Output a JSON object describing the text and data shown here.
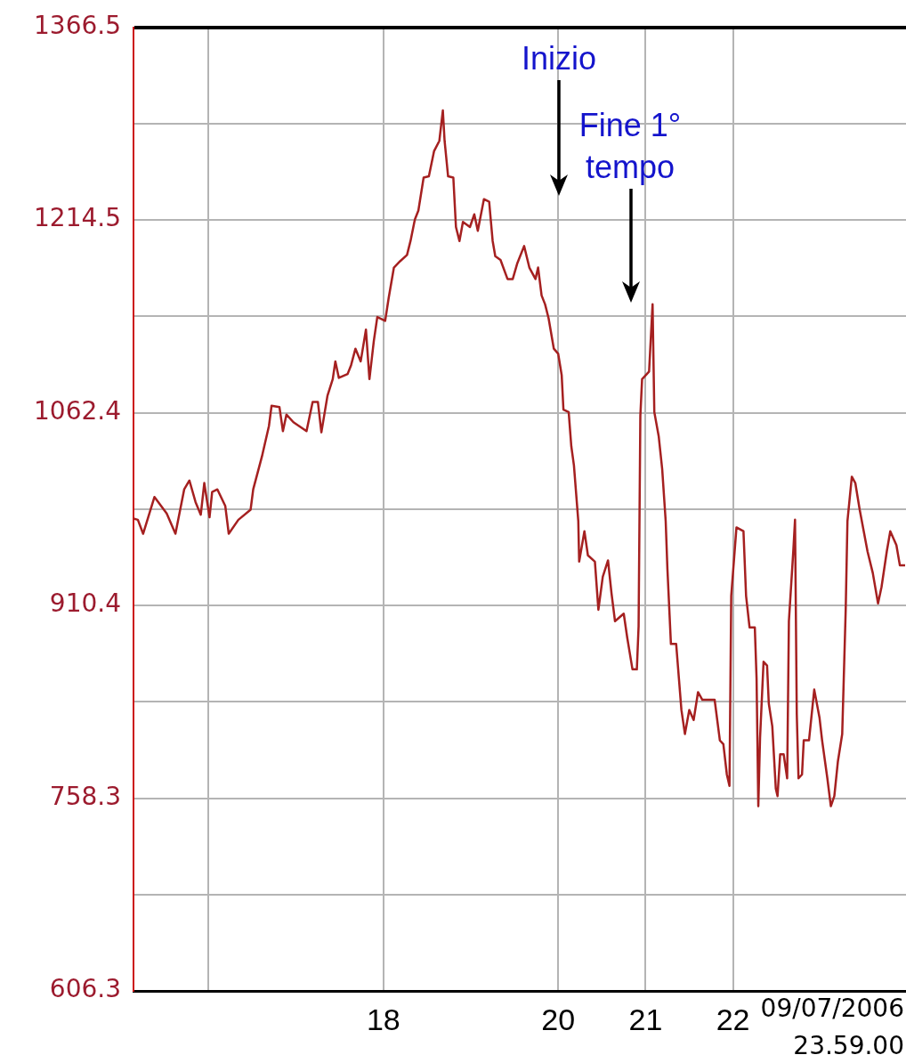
{
  "chart_data": {
    "type": "line",
    "x": [
      15.14,
      15.19,
      15.25,
      15.38,
      15.52,
      15.62,
      15.72,
      15.78,
      15.85,
      15.91,
      15.95,
      16.01,
      16.04,
      16.1,
      16.19,
      16.23,
      16.34,
      16.48,
      16.51,
      16.61,
      16.69,
      16.72,
      16.81,
      16.85,
      16.89,
      16.97,
      17.12,
      17.19,
      17.25,
      17.29,
      17.36,
      17.42,
      17.45,
      17.49,
      17.59,
      17.63,
      17.68,
      17.74,
      17.8,
      17.84,
      17.89,
      17.93,
      18.02,
      18.06,
      18.12,
      18.19,
      18.27,
      18.31,
      18.36,
      18.4,
      18.46,
      18.52,
      18.58,
      18.64,
      18.68,
      18.7,
      18.74,
      18.8,
      18.83,
      18.87,
      18.91,
      18.99,
      19.04,
      19.08,
      19.15,
      19.21,
      19.25,
      19.28,
      19.34,
      19.42,
      19.48,
      19.53,
      19.61,
      19.67,
      19.74,
      19.77,
      19.81,
      19.85,
      19.89,
      19.95,
      20.0,
      20.04,
      20.06,
      20.12,
      20.15,
      20.18,
      20.23,
      20.24,
      20.3,
      20.34,
      20.42,
      20.46,
      20.51,
      20.57,
      20.61,
      20.65,
      20.75,
      20.79,
      20.85,
      20.9,
      20.92,
      20.94,
      20.96,
      21.04,
      21.08,
      21.1,
      21.15,
      21.19,
      21.23,
      21.25,
      21.29,
      21.35,
      21.41,
      21.45,
      21.5,
      21.55,
      21.6,
      21.65,
      21.79,
      21.85,
      21.89,
      21.93,
      21.96,
      21.98,
      22.04,
      22.12,
      22.15,
      22.19,
      22.25,
      22.27,
      22.29,
      22.31,
      22.35,
      22.39,
      22.41,
      22.45,
      22.49,
      22.51,
      22.54,
      22.58,
      22.62,
      22.64,
      22.69,
      22.71,
      22.73,
      22.75,
      22.79,
      22.81,
      22.87,
      22.93,
      22.99,
      23.02,
      23.08,
      23.12,
      23.16,
      23.2,
      23.25,
      23.29,
      23.31,
      23.36,
      23.4,
      23.45,
      23.54,
      23.6,
      23.66,
      23.7,
      23.76,
      23.8,
      23.87,
      23.91,
      23.97
    ],
    "series": [
      {
        "color": "#a52020",
        "values": [
          979,
          978,
          967,
          996,
          983,
          967,
          1002,
          1009,
          992,
          982,
          1007,
          980,
          1000,
          1002,
          989,
          967,
          978,
          986,
          1002,
          1028,
          1052,
          1068,
          1067,
          1048,
          1061,
          1055,
          1048,
          1071,
          1071,
          1047,
          1076,
          1089,
          1103,
          1090,
          1093,
          1100,
          1113,
          1103,
          1128,
          1089,
          1119,
          1138,
          1135,
          1153,
          1177,
          1182,
          1187,
          1198,
          1215,
          1222,
          1248,
          1249,
          1269,
          1277,
          1301,
          1277,
          1249,
          1248,
          1209,
          1198,
          1213,
          1209,
          1219,
          1206,
          1231,
          1229,
          1198,
          1186,
          1183,
          1168,
          1168,
          1180,
          1194,
          1177,
          1168,
          1177,
          1155,
          1148,
          1137,
          1113,
          1109,
          1092,
          1065,
          1063,
          1036,
          1021,
          977,
          945,
          969,
          950,
          945,
          907,
          933,
          946,
          920,
          898,
          904,
          885,
          860,
          860,
          894,
          1060,
          1089,
          1095,
          1148,
          1063,
          1044,
          1018,
          977,
          939,
          880,
          880,
          828,
          809,
          828,
          820,
          842,
          836,
          836,
          804,
          801,
          777,
          768,
          918,
          972,
          969,
          918,
          893,
          893,
          853,
          752,
          806,
          866,
          863,
          833,
          815,
          766,
          760,
          793,
          793,
          774,
          898,
          953,
          978,
          825,
          774,
          777,
          804,
          804,
          844,
          822,
          804,
          774,
          752,
          760,
          787,
          809,
          907,
          977,
          1012,
          1007,
          986,
          953,
          936,
          912,
          925,
          953,
          969,
          958,
          942,
          942
        ]
      }
    ],
    "xlim": [
      15.14,
      23.98
    ],
    "ylim": [
      606.3,
      1366.5
    ],
    "xticks": [
      {
        "value": 16,
        "label": null
      },
      18,
      20,
      21,
      22
    ],
    "yticks": [
      606.3,
      {
        "value": 682.3,
        "label": null
      },
      758.3,
      {
        "value": 834.35,
        "label": null
      },
      910.4,
      {
        "value": 986.4,
        "label": null
      },
      1062.4,
      {
        "value": 1138.45,
        "label": null
      },
      1214.5,
      {
        "value": 1290.5,
        "label": null
      },
      1366.5
    ],
    "grid": true,
    "marker": "none",
    "line_style": "solid",
    "annotations": [
      "Inizio",
      "Fine 1° tempo",
      "09/07/2006 23.59.00"
    ]
  }
}
